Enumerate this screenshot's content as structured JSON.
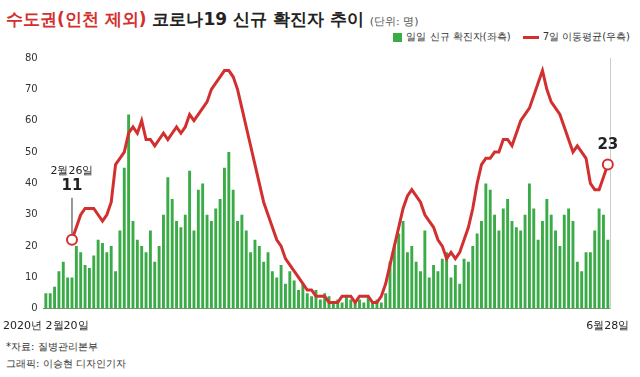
{
  "chart_data": {
    "type": "bar",
    "title": "수도권(인천 제외) 코로나19 신규 확진자 추이",
    "subtitle": "(단위: 명)",
    "footnotes": [
      "*자료: 질병관리본부",
      "그래픽: 이승현 디자인기자"
    ],
    "legend": "top-right",
    "grid": false,
    "ylim": [
      0,
      80
    ],
    "yticks": [
      0,
      10,
      20,
      30,
      40,
      50,
      60,
      70,
      80
    ],
    "y2lim": [
      0,
      40
    ],
    "categories": [
      "2020년 2월20일",
      null,
      null,
      null,
      null,
      null,
      null,
      null,
      null,
      null,
      null,
      null,
      null,
      null,
      null,
      null,
      null,
      null,
      null,
      null,
      null,
      null,
      null,
      null,
      null,
      null,
      null,
      null,
      null,
      null,
      null,
      null,
      null,
      null,
      null,
      null,
      null,
      null,
      null,
      null,
      null,
      null,
      null,
      null,
      null,
      null,
      null,
      null,
      null,
      null,
      null,
      null,
      null,
      null,
      null,
      null,
      null,
      null,
      null,
      null,
      null,
      null,
      null,
      null,
      null,
      null,
      null,
      null,
      null,
      null,
      null,
      null,
      null,
      null,
      null,
      null,
      null,
      null,
      null,
      null,
      null,
      null,
      null,
      null,
      null,
      null,
      null,
      null,
      null,
      null,
      null,
      null,
      null,
      null,
      null,
      null,
      null,
      null,
      null,
      null,
      null,
      null,
      null,
      null,
      null,
      null,
      null,
      null,
      null,
      null,
      null,
      null,
      null,
      null,
      null,
      null,
      null,
      null,
      null,
      null,
      null,
      null,
      null,
      null,
      null,
      null,
      null,
      null,
      null,
      "6월28일"
    ],
    "series": [
      {
        "name": "일일 신규 확진자(좌측)",
        "type": "bar",
        "color": "#3aab47",
        "values": [
          5,
          5,
          7,
          12,
          15,
          10,
          10,
          20,
          18,
          14,
          13,
          17,
          22,
          21,
          18,
          20,
          12,
          25,
          45,
          62,
          28,
          22,
          20,
          18,
          25,
          15,
          20,
          30,
          42,
          35,
          28,
          26,
          30,
          44,
          25,
          38,
          40,
          30,
          28,
          32,
          35,
          45,
          50,
          38,
          28,
          30,
          25,
          18,
          22,
          20,
          15,
          18,
          12,
          10,
          14,
          8,
          12,
          9,
          6,
          8,
          5,
          4,
          6,
          3,
          5,
          4,
          2,
          3,
          2,
          4,
          3,
          2,
          3,
          2,
          4,
          2,
          3,
          2,
          5,
          15,
          20,
          24,
          28,
          18,
          20,
          15,
          12,
          25,
          10,
          14,
          12,
          16,
          18,
          10,
          14,
          8,
          16,
          15,
          20,
          24,
          28,
          40,
          38,
          30,
          25,
          32,
          35,
          28,
          26,
          25,
          30,
          40,
          32,
          22,
          28,
          35,
          30,
          25,
          20,
          30,
          32,
          28,
          15,
          12,
          18,
          18,
          25,
          32,
          30,
          22
        ]
      },
      {
        "name": "7일 이동평균(우측)",
        "type": "line",
        "color": "#d2302f",
        "axis": "y2",
        "values": [
          null,
          null,
          null,
          null,
          null,
          null,
          11,
          13,
          15,
          16,
          16,
          16,
          15,
          14,
          15,
          17,
          23,
          24,
          25,
          28,
          29,
          28,
          30,
          27,
          27,
          26,
          27,
          28,
          27,
          28,
          29,
          28,
          29,
          31,
          30,
          31,
          32,
          33,
          35,
          36,
          37,
          38,
          38,
          37,
          35,
          32,
          29,
          26,
          23,
          20,
          17,
          15,
          13,
          11,
          10,
          8,
          7,
          6,
          5,
          4,
          3,
          3,
          2,
          2,
          2,
          1,
          1,
          1,
          2,
          2,
          2,
          1,
          2,
          2,
          2,
          1,
          1,
          2,
          4,
          7,
          10,
          13,
          16,
          18,
          19,
          18,
          17,
          15,
          14,
          13,
          11,
          10,
          8,
          9,
          8,
          9,
          11,
          13,
          16,
          20,
          23,
          24,
          24,
          25,
          25,
          27,
          27,
          26,
          28,
          30,
          31,
          32,
          34,
          36,
          38,
          35,
          33,
          32,
          31,
          29,
          27,
          25,
          26,
          25,
          24,
          20,
          19,
          19,
          21,
          23
        ]
      }
    ],
    "annotations": [
      {
        "series": 1,
        "index": 6,
        "lines": [
          "2월26일",
          "11"
        ]
      },
      {
        "series": 1,
        "index": 129,
        "lines": [
          "23"
        ]
      }
    ]
  }
}
